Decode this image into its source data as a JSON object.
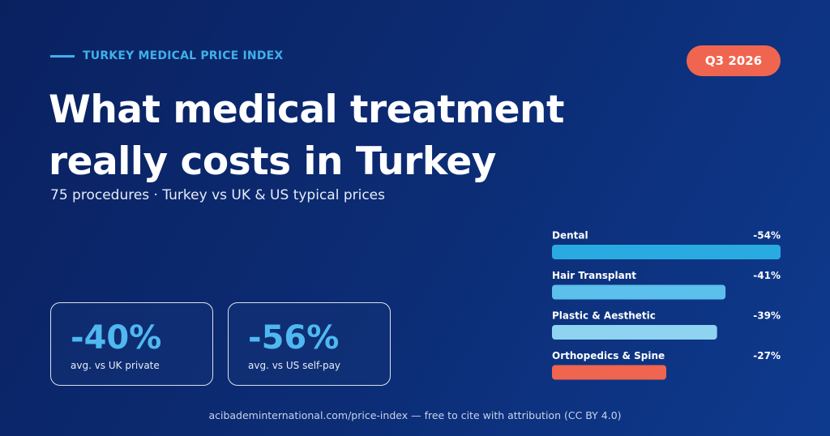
{
  "header": {
    "eyebrow": "TURKEY MEDICAL PRICE INDEX",
    "badge": "Q3 2026",
    "title_line_1": "What medical treatment",
    "title_line_2": "really costs in Turkey",
    "subtitle": "75 procedures · Turkey vs UK & US typical prices"
  },
  "stats": [
    {
      "value": "-40%",
      "caption": "avg. vs UK private"
    },
    {
      "value": "-56%",
      "caption": "avg. vs US self-pay"
    }
  ],
  "footer": "acibademinternational.com/price-index — free to cite with attribution (CC BY 4.0)",
  "chart_data": {
    "type": "bar",
    "orientation": "horizontal",
    "categories": [
      "Dental",
      "Hair Transplant",
      "Plastic & Aesthetic",
      "Orthopedics & Spine"
    ],
    "values": [
      -54,
      -41,
      -39,
      -27
    ],
    "value_labels": [
      "-54%",
      "-41%",
      "-39%",
      "-27%"
    ],
    "colors": [
      "#29abe2",
      "#5bc0eb",
      "#8ed3f0",
      "#f0654f"
    ],
    "xlim": [
      0,
      -54
    ]
  }
}
